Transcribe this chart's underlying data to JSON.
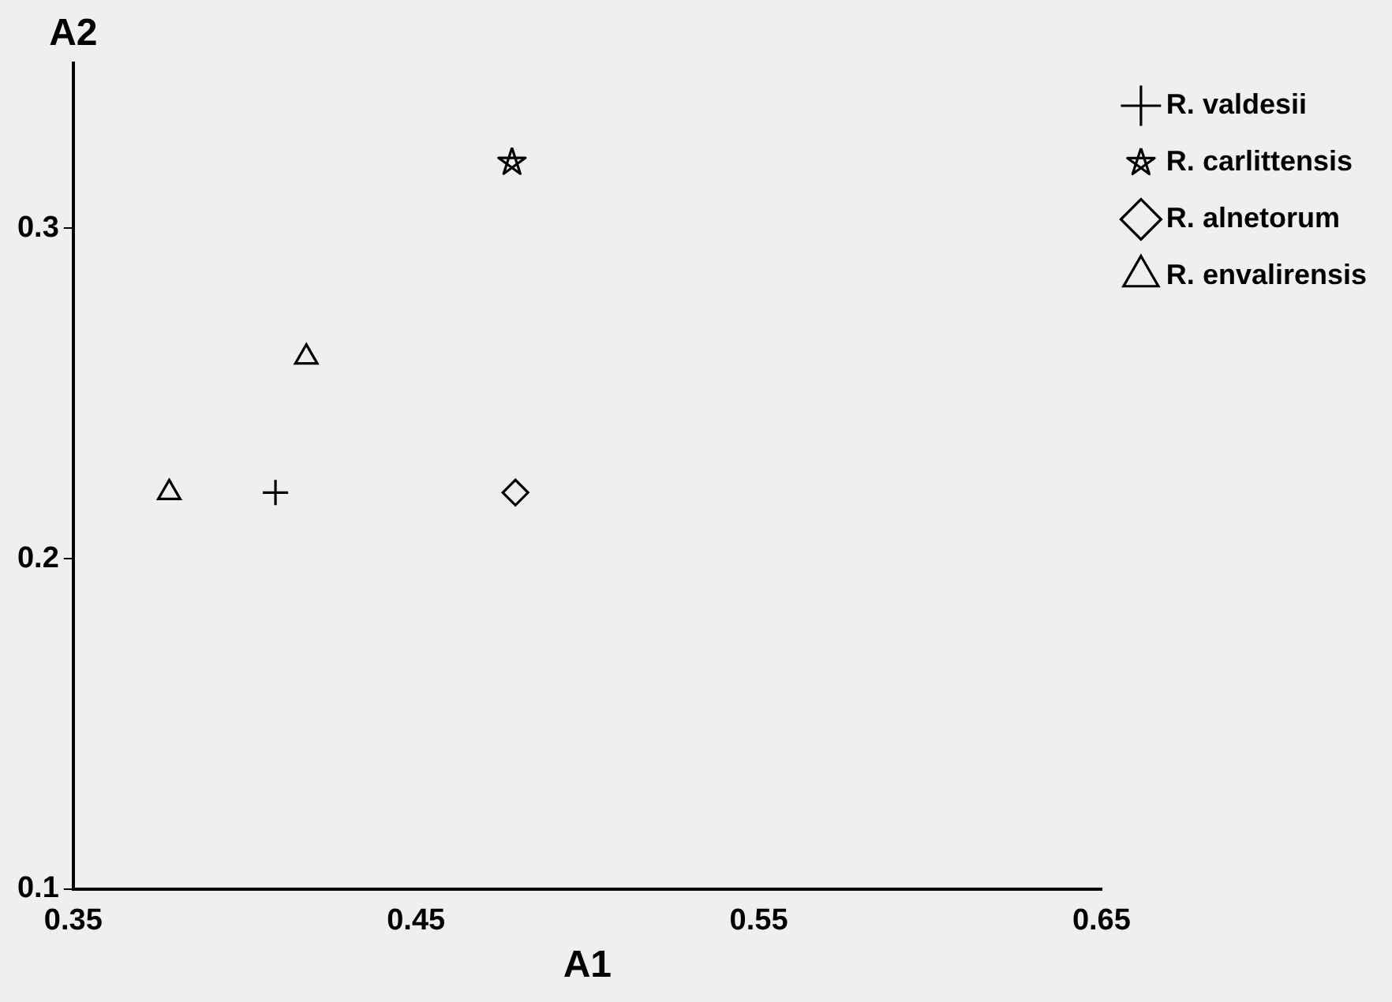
{
  "chart_data": {
    "type": "scatter",
    "xlabel": "A1",
    "ylabel": "A2",
    "xlim": [
      0.35,
      0.65
    ],
    "xticks": [
      0.35,
      0.45,
      0.55,
      0.65
    ],
    "ylim": [
      0.1,
      0.35
    ],
    "yticks": [
      0.1,
      0.2,
      0.3
    ],
    "grid": false,
    "legend": "right",
    "series": [
      {
        "name": "R. valdesii",
        "color": "#000000",
        "marker": "cross",
        "x": [
          0.409
        ],
        "values": [
          0.22
        ]
      },
      {
        "name": "R. carlittensis",
        "color": "#000000",
        "marker": "star",
        "x": [
          0.478
        ],
        "values": [
          0.32
        ]
      },
      {
        "name": "R. alnetorum",
        "color": "#000000",
        "marker": "diamond",
        "x": [
          0.479
        ],
        "values": [
          0.22
        ]
      },
      {
        "name": "R. envalirensis",
        "color": "#000000",
        "marker": "triangle",
        "x": [
          0.378,
          0.418
        ],
        "values": [
          0.22,
          0.261
        ]
      }
    ]
  }
}
